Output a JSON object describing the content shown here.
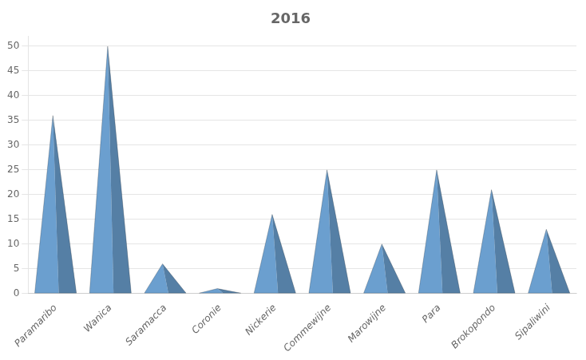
{
  "chart_data": {
    "type": "bar",
    "title": "2016",
    "categories": [
      "Paramaribo",
      "Wanica",
      "Saramacca",
      "Coronie",
      "Nickerie",
      "Commewijne",
      "Marowijne",
      "Para",
      "Brokopondo",
      "Sipaliwini"
    ],
    "values": [
      36,
      50,
      6,
      1,
      16,
      25,
      10,
      25,
      21,
      13
    ],
    "color": "#6b9fcf",
    "ylim": [
      0,
      52
    ],
    "yticks": [
      0,
      5,
      10,
      15,
      20,
      25,
      30,
      35,
      40,
      45,
      50
    ],
    "grid": true
  }
}
